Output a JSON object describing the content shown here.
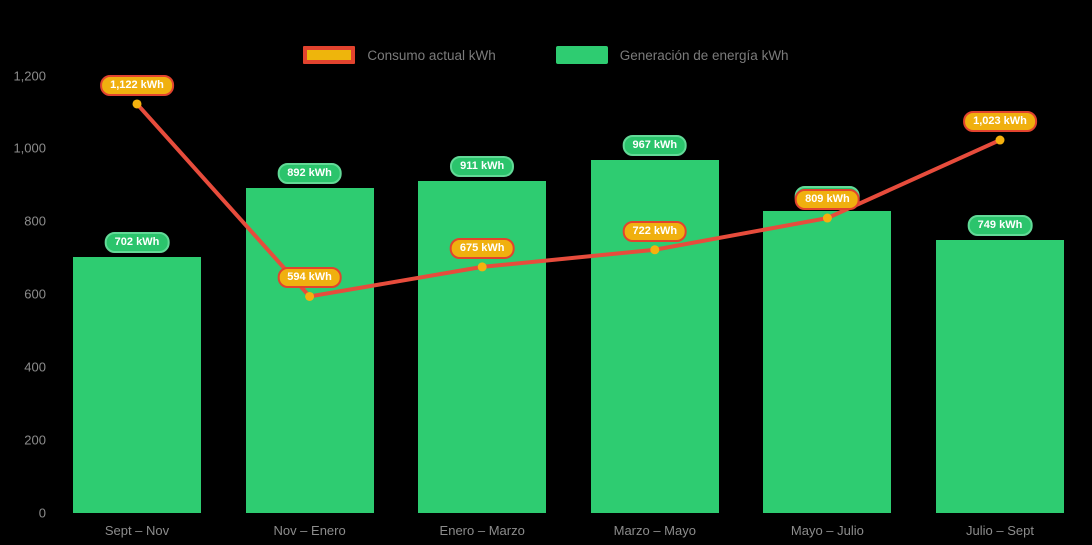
{
  "legend": {
    "line_label": "Consumo actual kWh",
    "bar_label": "Generación de energía kWh"
  },
  "colors": {
    "bar": "#2ecc71",
    "bar_pill_bg": "#2bc46c",
    "bar_pill_border": "#62da97",
    "line": "#e74c3c",
    "marker": "#f5b10e",
    "line_pill_bg": "#f0b00f",
    "line_pill_border": "#e2432e",
    "axis_text": "#8c8c8c",
    "background": "#000000"
  },
  "chart_data": {
    "type": "bar",
    "subtype": "bar-line-combo",
    "categories": [
      "Sept – Nov",
      "Nov – Enero",
      "Enero – Marzo",
      "Marzo – Mayo",
      "Mayo – Julio",
      "Julio – Sept"
    ],
    "series": [
      {
        "name": "Generación de energía kWh",
        "type": "bar",
        "values": [
          702,
          892,
          911,
          967,
          827,
          749
        ],
        "labels": [
          "702 kWh",
          "892 kWh",
          "911 kWh",
          "967 kWh",
          "827 kWh",
          "749 kWh"
        ]
      },
      {
        "name": "Consumo actual kWh",
        "type": "line",
        "values": [
          1122,
          594,
          675,
          722,
          809,
          1023
        ],
        "labels": [
          "1,122 kWh",
          "594 kWh",
          "675 kWh",
          "722 kWh",
          "809 kWh",
          "1,023 kWh"
        ]
      }
    ],
    "yticks": [
      "0",
      "200",
      "400",
      "600",
      "800",
      "1,000",
      "1,200"
    ],
    "ytick_values": [
      0,
      200,
      400,
      600,
      800,
      1000,
      1200
    ],
    "ylim": [
      0,
      1200
    ],
    "grid": false,
    "legend_position": "top",
    "title": "",
    "xlabel": "",
    "ylabel": ""
  }
}
